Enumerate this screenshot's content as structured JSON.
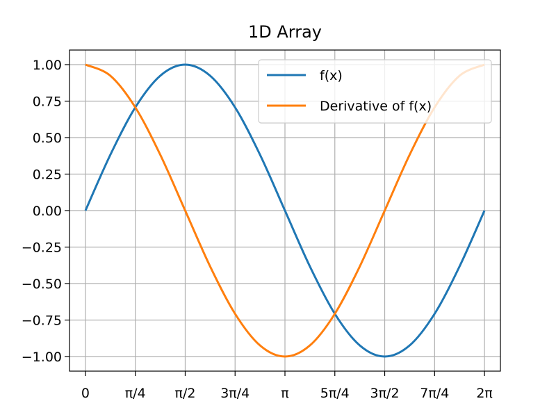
{
  "chart_data": {
    "type": "line",
    "title": "1D Array",
    "xlabel": "",
    "ylabel": "",
    "xlim": [
      -0.251,
      6.534
    ],
    "ylim": [
      -1.1,
      1.1
    ],
    "grid": true,
    "legend_position": "top-right",
    "x_ticks": [
      {
        "value": 0,
        "label": "0"
      },
      {
        "value": 0.7854,
        "label": "π/4"
      },
      {
        "value": 1.5708,
        "label": "π/2"
      },
      {
        "value": 2.3562,
        "label": "3π/4"
      },
      {
        "value": 3.1416,
        "label": "π"
      },
      {
        "value": 3.927,
        "label": "5π/4"
      },
      {
        "value": 4.7124,
        "label": "3π/2"
      },
      {
        "value": 5.4978,
        "label": "7π/4"
      },
      {
        "value": 6.2832,
        "label": "2π"
      }
    ],
    "y_ticks": [
      {
        "value": 1.0,
        "label": "1.00"
      },
      {
        "value": 0.75,
        "label": "0.75"
      },
      {
        "value": 0.5,
        "label": "0.50"
      },
      {
        "value": 0.25,
        "label": "0.25"
      },
      {
        "value": 0.0,
        "label": "0.00"
      },
      {
        "value": -0.25,
        "label": "−0.25"
      },
      {
        "value": -0.5,
        "label": "−0.50"
      },
      {
        "value": -0.75,
        "label": "−0.75"
      },
      {
        "value": -1.0,
        "label": "−1.00"
      }
    ],
    "x": [
      0,
      0.3927,
      0.7854,
      1.1781,
      1.5708,
      1.9635,
      2.3562,
      2.7489,
      3.1416,
      3.5343,
      3.927,
      4.3197,
      4.7124,
      5.1051,
      5.4978,
      5.8905,
      6.2832
    ],
    "series": [
      {
        "name": "f(x)",
        "color": "#1f77b4",
        "values": [
          0.0,
          0.3827,
          0.7071,
          0.9239,
          1.0,
          0.9239,
          0.7071,
          0.3827,
          0.0,
          -0.3827,
          -0.7071,
          -0.9239,
          -1.0,
          -0.9239,
          -0.7071,
          -0.3827,
          0.0
        ]
      },
      {
        "name": "Derivative of f(x)",
        "color": "#ff7f0e",
        "values": [
          1.0,
          0.9239,
          0.7071,
          0.3827,
          0.0,
          -0.3827,
          -0.7071,
          -0.9239,
          -1.0,
          -0.9239,
          -0.7071,
          -0.3827,
          0.0,
          0.3827,
          0.7071,
          0.9239,
          1.0
        ]
      }
    ]
  }
}
